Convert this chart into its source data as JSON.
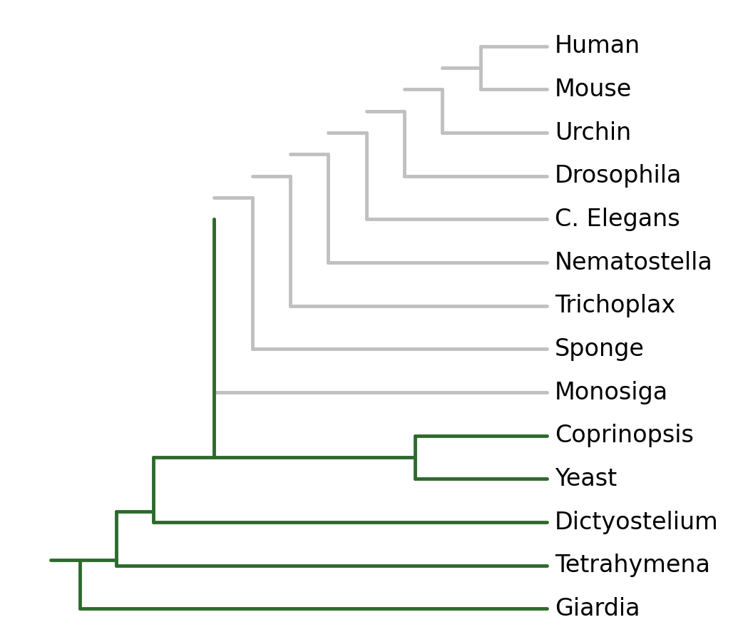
{
  "taxa": [
    "Human",
    "Mouse",
    "Urchin",
    "Drosophila",
    "C. Elegans",
    "Nematostella",
    "Trichoplax",
    "Sponge",
    "Monosiga",
    "Coprinopsis",
    "Yeast",
    "Dictyostelium",
    "Tetrahymena",
    "Giardia"
  ],
  "colors": {
    "gray": "#c0c0c0",
    "green": "#2d6a2d"
  },
  "gray_taxa": [
    "Human",
    "Mouse",
    "Urchin",
    "Drosophila",
    "C. Elegans",
    "Nematostella",
    "Trichoplax",
    "Sponge",
    "Monosiga"
  ],
  "green_taxa": [
    "Coprinopsis",
    "Yeast",
    "Dictyostelium",
    "Tetrahymena",
    "Giardia"
  ],
  "lw": 3.5,
  "fontsize": 24,
  "background_color": "#ffffff",
  "figsize": [
    10.49,
    9.0
  ],
  "dpi": 100
}
